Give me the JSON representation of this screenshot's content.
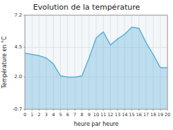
{
  "chart_data": {
    "type": "area",
    "title": "Evolution de la température",
    "xlabel": "heure par heure",
    "ylabel": "Température en °C",
    "x": [
      0,
      1,
      2,
      3,
      4,
      5,
      6,
      7,
      8,
      9,
      10,
      11,
      12,
      13,
      14,
      15,
      16,
      17,
      18,
      19,
      20
    ],
    "values": [
      4.0,
      3.9,
      3.8,
      3.6,
      3.1,
      2.1,
      2.0,
      2.0,
      2.1,
      3.6,
      5.3,
      5.8,
      4.7,
      5.2,
      5.6,
      6.2,
      6.1,
      4.9,
      3.9,
      2.8,
      2.8
    ],
    "color": "#5ab0d8",
    "xlim": [
      0,
      20
    ],
    "xticks": [
      0,
      1,
      2,
      3,
      4,
      5,
      6,
      7,
      8,
      9,
      10,
      11,
      12,
      13,
      14,
      15,
      16,
      17,
      18,
      19,
      20
    ],
    "ylim": [
      -0.7,
      7.2
    ],
    "yticks": [
      -0.7,
      {
        "value": 2.0,
        "label": "2.0"
      },
      4.5,
      7.2
    ],
    "grid": true
  }
}
